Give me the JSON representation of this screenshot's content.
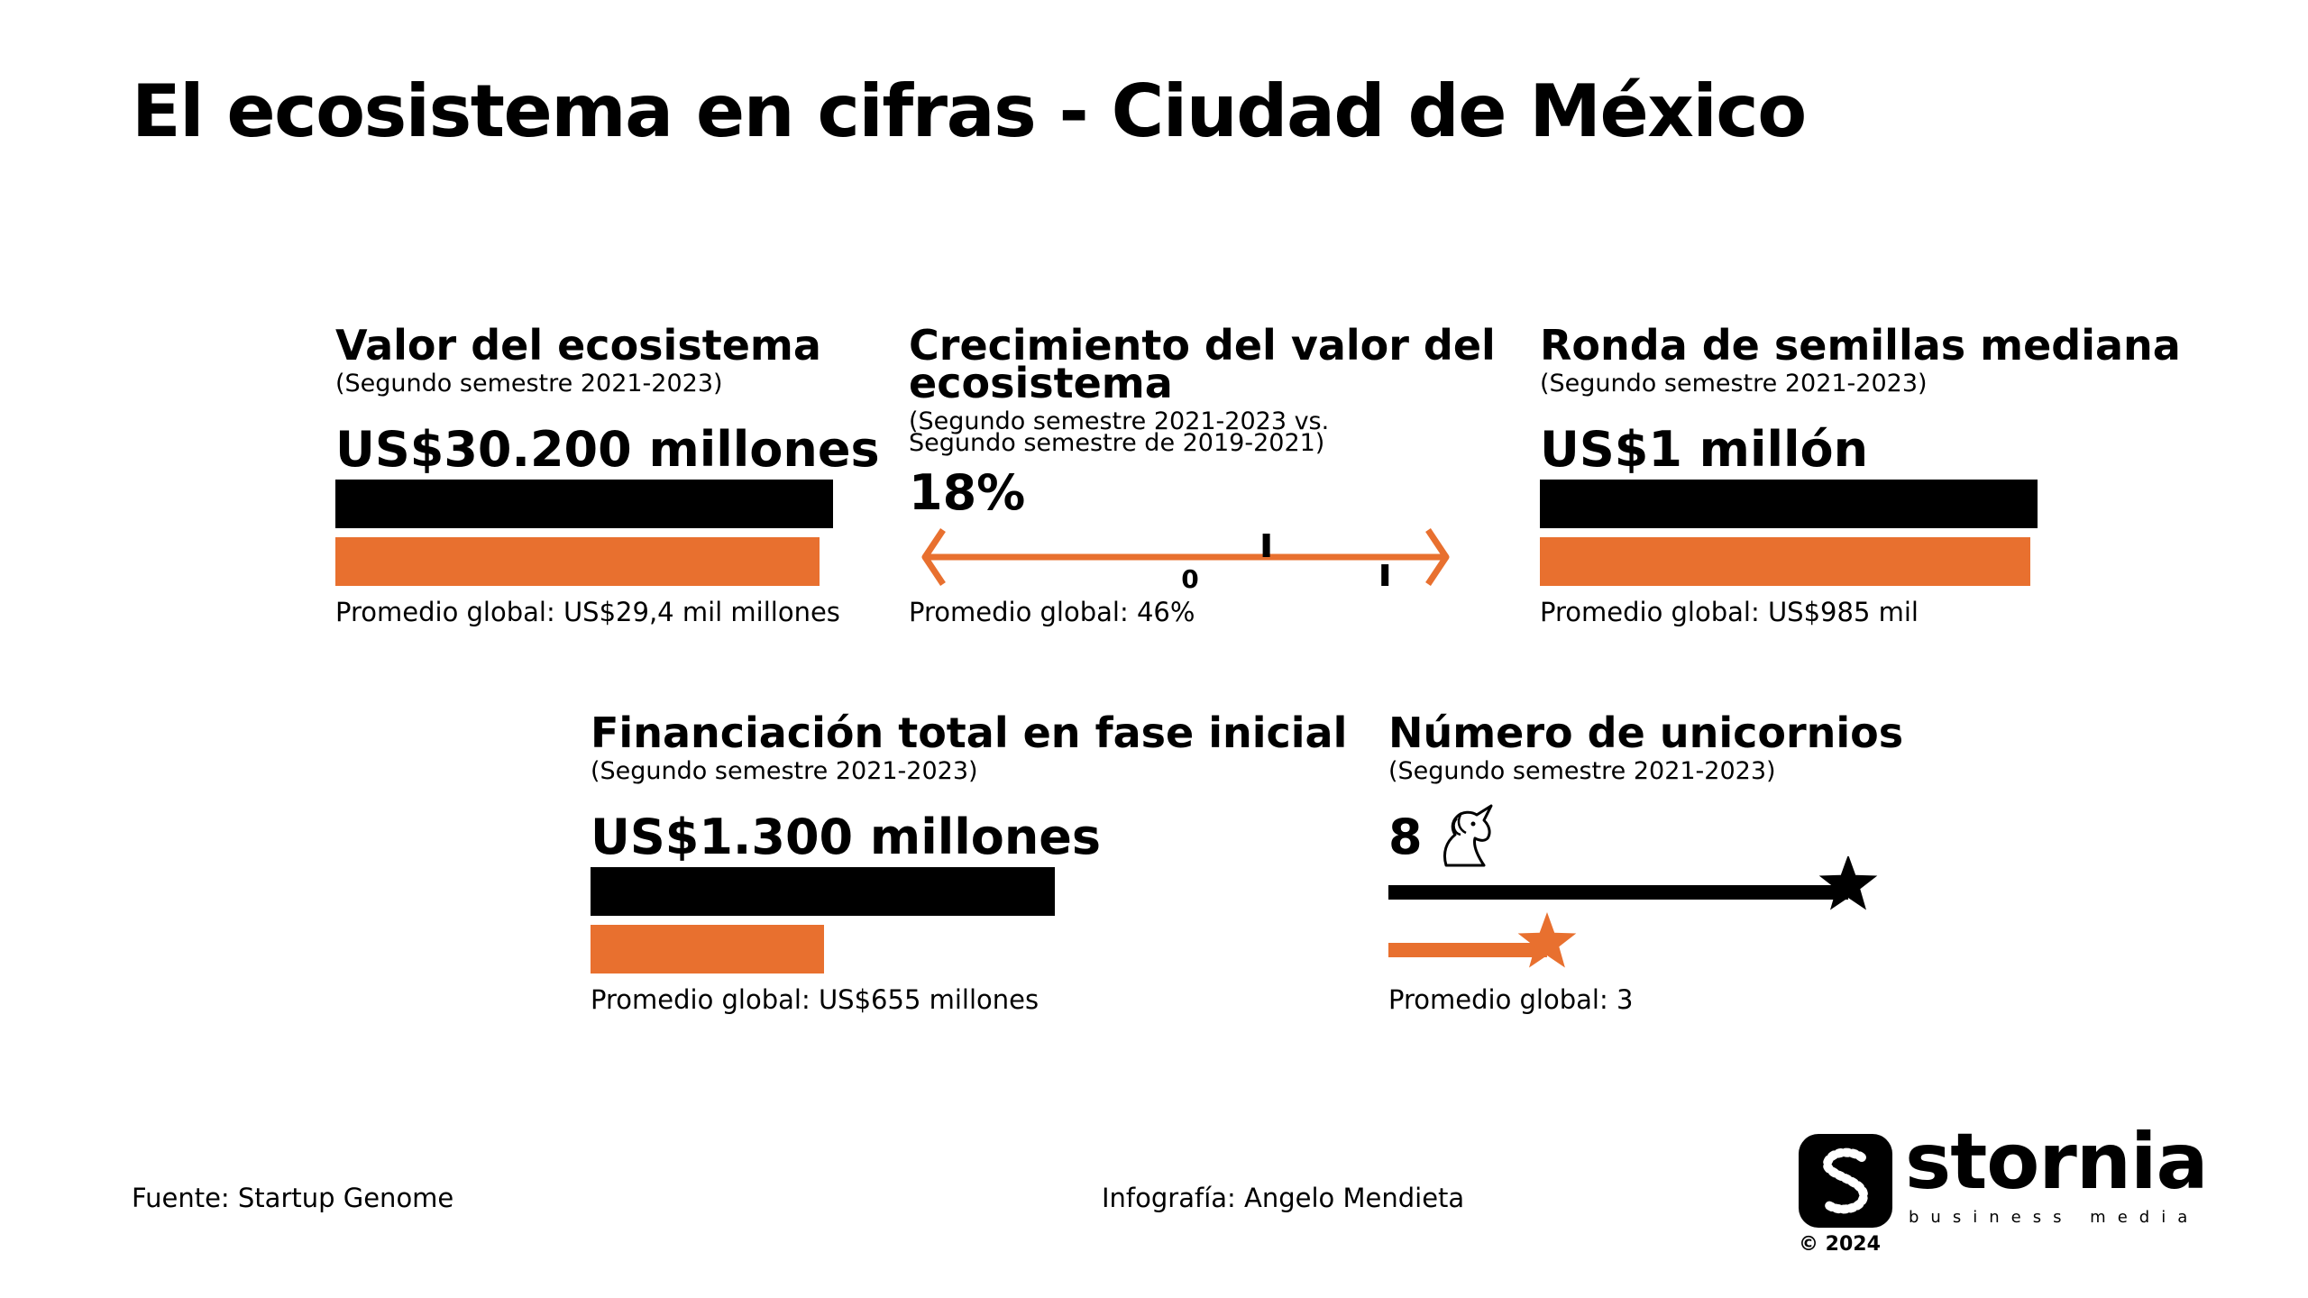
{
  "colors": {
    "accent": "#e8702f",
    "primary": "#000000",
    "background": "#ffffff"
  },
  "title": "El ecosistema en cifras - Ciudad de México",
  "panels": {
    "valor": {
      "title": "Valor del ecosistema",
      "subtitle": "(Segundo semestre 2021-2023)",
      "value": "US$30.200 millones",
      "average": "Promedio global: US$29,4 mil millones"
    },
    "crecimiento": {
      "title_line1": "Crecimiento del valor del",
      "title_line2": "ecosistema",
      "subtitle_line1": "(Segundo semestre 2021-2023 vs.",
      "subtitle_line2": "Segundo semestre de 2019-2021)",
      "value": "18%",
      "axis_zero": "0",
      "average": "Promedio global: 46%"
    },
    "ronda": {
      "title": "Ronda de semillas mediana",
      "subtitle": "(Segundo semestre 2021-2023)",
      "value": "US$1 millón",
      "average": "Promedio global: US$985 mil"
    },
    "financiacion": {
      "title": "Financiación total en fase inicial",
      "subtitle": "(Segundo semestre 2021-2023)",
      "value": "US$1.300 millones",
      "average": "Promedio global: US$655 millones"
    },
    "unicornios": {
      "title": "Número de unicornios",
      "subtitle": "(Segundo semestre 2021-2023)",
      "value": "8",
      "icon": "unicorn-icon",
      "average": "Promedio global: 3"
    }
  },
  "chart_data": [
    {
      "type": "bar",
      "title": "Valor del ecosistema",
      "unit": "US$ millones",
      "series": [
        {
          "name": "Ciudad de México",
          "value": 30200
        },
        {
          "name": "Promedio global",
          "value": 29400
        }
      ]
    },
    {
      "type": "scatter",
      "title": "Crecimiento del valor del ecosistema",
      "unit": "%",
      "series": [
        {
          "name": "Ciudad de México",
          "value": 18
        },
        {
          "name": "Promedio global",
          "value": 46
        }
      ]
    },
    {
      "type": "bar",
      "title": "Ronda de semillas mediana",
      "unit": "US$ mil",
      "series": [
        {
          "name": "Ciudad de México",
          "value": 1000
        },
        {
          "name": "Promedio global",
          "value": 985
        }
      ]
    },
    {
      "type": "bar",
      "title": "Financiación total en fase inicial",
      "unit": "US$ millones",
      "series": [
        {
          "name": "Ciudad de México",
          "value": 1300
        },
        {
          "name": "Promedio global",
          "value": 655
        }
      ]
    },
    {
      "type": "bar",
      "title": "Número de unicornios",
      "unit": "unicornios",
      "series": [
        {
          "name": "Ciudad de México",
          "value": 8
        },
        {
          "name": "Promedio global",
          "value": 3
        }
      ]
    }
  ],
  "footer": {
    "source": "Fuente: Startup Genome",
    "credit": "Infografía: Angelo Mendieta",
    "logo_name": "stornia",
    "logo_tagline": "business media",
    "copyright": "© 2024"
  }
}
